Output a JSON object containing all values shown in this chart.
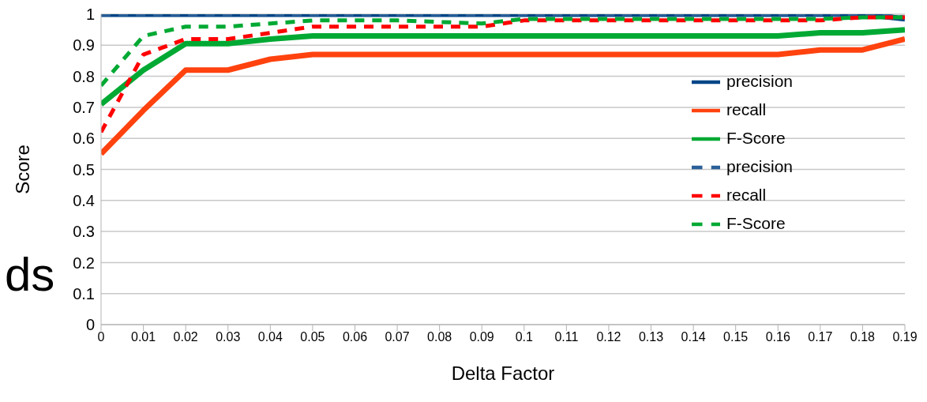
{
  "chart_data": {
    "type": "line",
    "xlabel": "Delta Factor",
    "ylabel": "Score",
    "annotations": [
      "ds"
    ],
    "categories": [
      "0",
      "0.01",
      "0.02",
      "0.03",
      "0.04",
      "0.05",
      "0.06",
      "0.07",
      "0.08",
      "0.09",
      "0.1",
      "0.11",
      "0.12",
      "0.13",
      "0.14",
      "0.15",
      "0.16",
      "0.17",
      "0.18",
      "0.19"
    ],
    "ylim": [
      0,
      1
    ],
    "yticks": [
      0,
      0.1,
      0.2,
      0.3,
      0.4,
      0.5,
      0.6,
      0.7,
      0.8,
      0.9,
      1
    ],
    "grid": "y",
    "legend": "right",
    "marker": "none",
    "series": [
      {
        "name": "precision",
        "color": "#004586",
        "line_style": "solid",
        "values": [
          1,
          1,
          1,
          1,
          1,
          1,
          1,
          1,
          1,
          1,
          1,
          1,
          1,
          1,
          1,
          1,
          1,
          1,
          1,
          0.985
        ]
      },
      {
        "name": "recall",
        "color": "#ff420e",
        "line_style": "solid",
        "values": [
          0.55,
          0.69,
          0.82,
          0.82,
          0.855,
          0.87,
          0.87,
          0.87,
          0.87,
          0.87,
          0.87,
          0.87,
          0.87,
          0.87,
          0.87,
          0.87,
          0.87,
          0.885,
          0.885,
          0.92
        ]
      },
      {
        "name": "F-Score",
        "color": "#00a933",
        "line_style": "solid",
        "values": [
          0.71,
          0.82,
          0.905,
          0.905,
          0.92,
          0.93,
          0.93,
          0.93,
          0.93,
          0.93,
          0.93,
          0.93,
          0.93,
          0.93,
          0.93,
          0.93,
          0.93,
          0.94,
          0.94,
          0.95
        ]
      },
      {
        "name": "precision",
        "color": "#2a6099",
        "line_style": "dashed",
        "values": [
          1,
          1,
          1,
          1,
          1,
          1,
          1,
          1,
          1,
          1,
          1,
          1,
          1,
          1,
          1,
          1,
          1,
          1,
          1,
          0.99
        ]
      },
      {
        "name": "recall",
        "color": "#ff0000",
        "line_style": "dashed",
        "values": [
          0.62,
          0.87,
          0.92,
          0.92,
          0.94,
          0.96,
          0.96,
          0.96,
          0.96,
          0.96,
          0.98,
          0.98,
          0.98,
          0.98,
          0.98,
          0.98,
          0.98,
          0.98,
          0.99,
          0.99
        ]
      },
      {
        "name": "F-Score",
        "color": "#00a933",
        "line_style": "dashed",
        "values": [
          0.77,
          0.93,
          0.96,
          0.96,
          0.97,
          0.98,
          0.98,
          0.98,
          0.975,
          0.97,
          0.985,
          0.985,
          0.985,
          0.985,
          0.985,
          0.985,
          0.985,
          0.985,
          0.99,
          0.99
        ]
      }
    ]
  }
}
